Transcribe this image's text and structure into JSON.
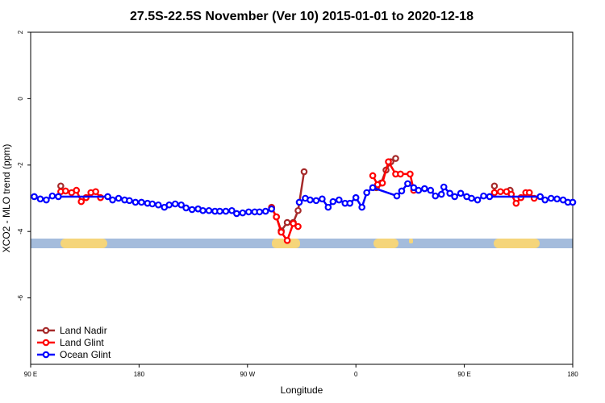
{
  "chart_data": {
    "type": "line",
    "title": "27.5S-22.5S November (Ver 10)   2015-01-01 to 2020-12-18",
    "x_label": "Longitude",
    "y_label": "XCO2 - MLO trend (ppm)",
    "xlim": [
      90,
      540
    ],
    "xticks": [
      {
        "value": 90,
        "label": "90 E"
      },
      {
        "value": 180,
        "label": "180"
      },
      {
        "value": 270,
        "label": "90 W"
      },
      {
        "value": 360,
        "label": "0"
      },
      {
        "value": 450,
        "label": "90 E"
      },
      {
        "value": 540,
        "label": "180"
      }
    ],
    "ylim": [
      -8,
      2
    ],
    "yticks": [
      2,
      0,
      -2,
      -4,
      -6
    ],
    "legend": "bottom-left",
    "series": [
      {
        "name": "Land Nadir",
        "color": "#a52a2a",
        "x": [
          115,
          null,
          290,
          294,
          298,
          303,
          308,
          312,
          317,
          null,
          377,
          381,
          385,
          389,
          393,
          null,
          475,
          null,
          488
        ],
        "values": [
          -2.63,
          null,
          -3.27,
          -3.56,
          -3.98,
          -3.73,
          -3.73,
          -3.37,
          -2.2,
          null,
          -2.68,
          -2.54,
          -2.15,
          -1.9,
          -1.8,
          null,
          -2.63,
          null,
          -2.76
        ]
      },
      {
        "name": "Land Glint",
        "color": "#ff0000",
        "x": [
          115,
          119,
          124,
          128,
          132,
          136,
          140,
          144,
          148,
          null,
          290,
          294,
          298,
          303,
          308,
          312,
          null,
          374,
          378,
          382,
          387,
          393,
          397,
          405,
          408,
          null,
          475,
          480,
          485,
          489,
          493,
          497,
          501,
          504,
          508
        ],
        "values": [
          -2.8,
          -2.78,
          -2.83,
          -2.76,
          -3.1,
          -2.98,
          -2.83,
          -2.8,
          -2.98,
          null,
          -3.29,
          -3.56,
          -4.02,
          -4.27,
          -3.76,
          -3.85,
          null,
          -2.32,
          -2.59,
          -2.54,
          -1.9,
          -2.27,
          -2.27,
          -2.27,
          -2.76,
          null,
          -2.83,
          -2.8,
          -2.8,
          -2.88,
          -3.15,
          -2.98,
          -2.83,
          -2.83,
          -3.0
        ]
      },
      {
        "name": "Ocean Glint",
        "color": "#0000ff",
        "x": [
          93,
          98,
          103,
          108,
          113,
          154,
          158,
          163,
          168,
          172,
          177,
          182,
          187,
          191,
          196,
          201,
          205,
          210,
          215,
          219,
          224,
          229,
          233,
          238,
          243,
          247,
          252,
          257,
          261,
          266,
          271,
          276,
          280,
          285,
          290,
          null,
          313,
          318,
          322,
          327,
          332,
          337,
          341,
          346,
          351,
          355,
          360,
          365,
          369,
          374,
          394,
          398,
          403,
          408,
          412,
          417,
          422,
          426,
          431,
          433,
          438,
          442,
          447,
          452,
          456,
          461,
          466,
          471,
          513,
          517,
          522,
          527,
          532,
          536,
          540
        ],
        "values": [
          -2.95,
          -3.02,
          -3.05,
          -2.93,
          -2.95,
          -2.95,
          -3.05,
          -3.0,
          -3.05,
          -3.07,
          -3.12,
          -3.12,
          -3.15,
          -3.17,
          -3.2,
          -3.27,
          -3.2,
          -3.17,
          -3.2,
          -3.29,
          -3.34,
          -3.32,
          -3.37,
          -3.37,
          -3.39,
          -3.39,
          -3.39,
          -3.37,
          -3.46,
          -3.44,
          -3.41,
          -3.41,
          -3.41,
          -3.39,
          -3.32,
          null,
          -3.12,
          -3.0,
          -3.05,
          -3.07,
          -3.02,
          -3.27,
          -3.1,
          -3.05,
          -3.15,
          -3.15,
          -2.98,
          -3.27,
          -2.83,
          -2.68,
          -2.93,
          -2.78,
          -2.56,
          -2.68,
          -2.76,
          -2.71,
          -2.76,
          -2.93,
          -2.88,
          -2.66,
          -2.85,
          -2.95,
          -2.85,
          -2.95,
          -3.0,
          -3.05,
          -2.93,
          -2.95,
          -2.95,
          -3.05,
          -3.0,
          -3.02,
          -3.05,
          -3.12,
          -3.12
        ]
      }
    ]
  }
}
